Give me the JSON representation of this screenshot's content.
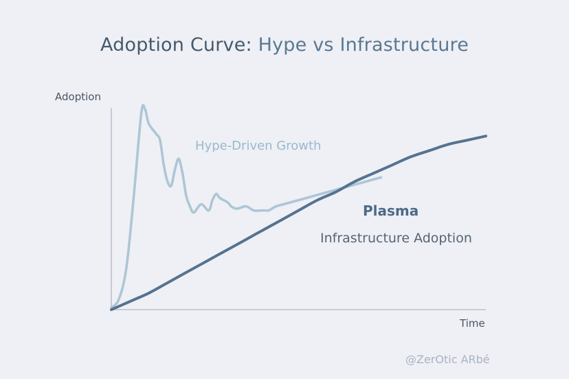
{
  "title": {
    "main": "Adoption Curve",
    "sep": ": ",
    "sub": "Hype vs Infrastructure"
  },
  "chart_data": {
    "type": "line",
    "title": "Adoption Curve: Hype vs Infrastructure",
    "xlabel": "Time",
    "ylabel": "Adoption",
    "grid": false,
    "series": [
      {
        "name": "Hype-Driven Growth",
        "color": "#aac3d3",
        "x": [
          0,
          2,
          4,
          6,
          8,
          9,
          10,
          12,
          13,
          14,
          15,
          16,
          17,
          18,
          19,
          20,
          21,
          22,
          24,
          26,
          27,
          28,
          29,
          31,
          32,
          33,
          34,
          36,
          38,
          40,
          41,
          42,
          43,
          44,
          46,
          48,
          50,
          52,
          54,
          56,
          58,
          60,
          62,
          64,
          66,
          68,
          70,
          72
        ],
        "y": [
          1,
          5,
          20,
          55,
          95,
          97,
          90,
          85,
          82,
          70,
          62,
          60,
          68,
          73,
          66,
          55,
          50,
          47,
          51,
          48,
          53,
          56,
          54,
          52,
          50,
          49,
          49,
          50,
          48,
          48,
          48,
          48,
          49,
          50,
          51,
          52,
          53,
          54,
          55,
          56,
          57,
          58,
          59,
          60,
          61,
          62,
          63,
          64
        ]
      },
      {
        "name": "Infrastructure Adoption",
        "label_title": "Plasma",
        "color": "#56728f",
        "x": [
          0,
          5,
          10,
          15,
          20,
          25,
          30,
          35,
          40,
          45,
          50,
          55,
          60,
          65,
          70,
          75,
          80,
          85,
          90,
          95,
          100
        ],
        "y": [
          0,
          4,
          8,
          13,
          18,
          23,
          28,
          33,
          38,
          43,
          48,
          53,
          57,
          62,
          66,
          70,
          74,
          77,
          80,
          82,
          84
        ]
      }
    ],
    "labels": {
      "hype": "Hype-Driven Growth",
      "infra_title": "Plasma",
      "infra_sub": "Infrastructure Adoption"
    },
    "xlim": [
      0,
      100
    ],
    "ylim": [
      0,
      100
    ]
  },
  "watermark": "@ZerOtic ARbé"
}
